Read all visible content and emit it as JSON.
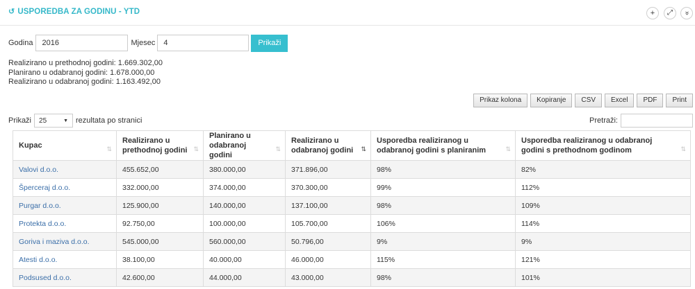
{
  "panel": {
    "title_icon": "↺",
    "title": "USPOREDBA ZA GODINU - YTD",
    "buttons": [
      {
        "icon": "plus-icon",
        "glyph": "+"
      },
      {
        "icon": "expand-icon",
        "glyph": "⤢"
      },
      {
        "icon": "collapse-icon",
        "glyph": "»"
      }
    ]
  },
  "form": {
    "year_label": "Godina",
    "year_value": "2016",
    "month_label": "Mjesec",
    "month_value": "4",
    "show_button": "Prikaži"
  },
  "summary": {
    "line1": "Realizirano u prethodnoj godini: 1.669.302,00",
    "line2": "Planirano u odabranoj godini: 1.678.000,00",
    "line3": "Realizirano u odabranoj godini: 1.163.492,00"
  },
  "export_buttons": [
    "Prikaz kolona",
    "Kopiranje",
    "CSV",
    "Excel",
    "PDF",
    "Print"
  ],
  "length": {
    "prefix": "Prikaži",
    "value": "25",
    "suffix": "rezultata po stranici"
  },
  "search": {
    "label": "Pretraži:",
    "value": ""
  },
  "table": {
    "columns": [
      {
        "label": "Kupac",
        "sorted": false
      },
      {
        "label": "Realizirano u prethodnoj godini",
        "sorted": false
      },
      {
        "label": "Planirano u odabranoj godini",
        "sorted": false
      },
      {
        "label": "Realizirano u odabranoj godini",
        "sorted": true
      },
      {
        "label": "Usporedba realiziranog u odabranoj godini s planiranim",
        "sorted": false
      },
      {
        "label": "Usporedba realiziranog u odabranoj godini s prethodnom godinom",
        "sorted": false
      }
    ],
    "rows": [
      [
        "Valovi d.o.o.",
        "455.652,00",
        "380.000,00",
        "371.896,00",
        "98%",
        "82%"
      ],
      [
        "Šperceraj d.o.o.",
        "332.000,00",
        "374.000,00",
        "370.300,00",
        "99%",
        "112%"
      ],
      [
        "Purgar d.o.o.",
        "125.900,00",
        "140.000,00",
        "137.100,00",
        "98%",
        "109%"
      ],
      [
        "Protekta d.o.o.",
        "92.750,00",
        "100.000,00",
        "105.700,00",
        "106%",
        "114%"
      ],
      [
        "Goriva i maziva d.o.o.",
        "545.000,00",
        "560.000,00",
        "50.796,00",
        "9%",
        "9%"
      ],
      [
        "Atesti d.o.o.",
        "38.100,00",
        "40.000,00",
        "46.000,00",
        "115%",
        "121%"
      ],
      [
        "Podsused d.o.o.",
        "42.600,00",
        "44.000,00",
        "43.000,00",
        "98%",
        "101%"
      ]
    ]
  }
}
